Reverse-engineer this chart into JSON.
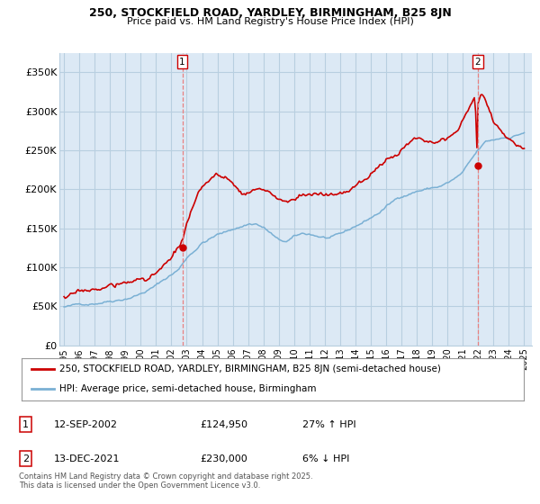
{
  "title1": "250, STOCKFIELD ROAD, YARDLEY, BIRMINGHAM, B25 8JN",
  "title2": "Price paid vs. HM Land Registry's House Price Index (HPI)",
  "ylabel_ticks": [
    "£0",
    "£50K",
    "£100K",
    "£150K",
    "£200K",
    "£250K",
    "£300K",
    "£350K"
  ],
  "ylabel_values": [
    0,
    50000,
    100000,
    150000,
    200000,
    250000,
    300000,
    350000
  ],
  "ylim": [
    0,
    375000
  ],
  "xlim_start": 1994.7,
  "xlim_end": 2025.5,
  "point1_label": "1",
  "point1_date": "12-SEP-2002",
  "point1_price": "£124,950",
  "point1_hpi": "27% ↑ HPI",
  "point1_x": 2002.71,
  "point1_y": 124950,
  "point2_label": "2",
  "point2_date": "13-DEC-2021",
  "point2_price": "£230,000",
  "point2_hpi": "6% ↓ HPI",
  "point2_x": 2021.96,
  "point2_y": 230000,
  "legend_line1": "250, STOCKFIELD ROAD, YARDLEY, BIRMINGHAM, B25 8JN (semi-detached house)",
  "legend_line2": "HPI: Average price, semi-detached house, Birmingham",
  "red_color": "#cc0000",
  "blue_color": "#7ab0d4",
  "plot_bg": "#dce9f5",
  "grid_color": "#b8cfe0",
  "bg_color": "#ffffff",
  "dashed_color": "#e88080",
  "dot_color": "#cc0000",
  "footnote": "Contains HM Land Registry data © Crown copyright and database right 2025.\nThis data is licensed under the Open Government Licence v3.0.",
  "x_ticks": [
    1995,
    1996,
    1997,
    1998,
    1999,
    2000,
    2001,
    2002,
    2003,
    2004,
    2005,
    2006,
    2007,
    2008,
    2009,
    2010,
    2011,
    2012,
    2013,
    2014,
    2015,
    2016,
    2017,
    2018,
    2019,
    2020,
    2021,
    2022,
    2023,
    2024,
    2025
  ]
}
